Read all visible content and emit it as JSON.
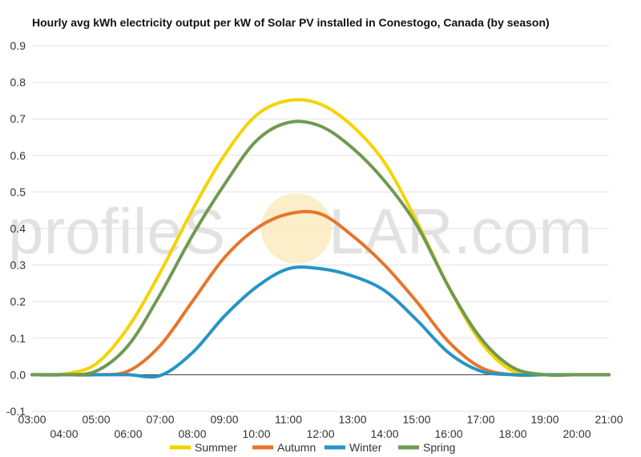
{
  "title": "Hourly avg kWh electricity output per kW of Solar PV installed in Conestogo, Canada (by season)",
  "watermark": {
    "left": "profileS",
    "right": "LAR.com"
  },
  "chart_data": {
    "type": "line",
    "title": "Hourly avg kWh electricity output per kW of Solar PV installed in Conestogo, Canada (by season)",
    "ylim": [
      -0.1,
      0.9
    ],
    "yticks": [
      -0.1,
      0.0,
      0.1,
      0.2,
      0.3,
      0.4,
      0.5,
      0.6,
      0.7,
      0.8,
      0.9
    ],
    "xlim": [
      3,
      21
    ],
    "x_tick_labels": [
      "03:00",
      "04:00",
      "05:00",
      "06:00",
      "07:00",
      "08:00",
      "09:00",
      "10:00",
      "11:00",
      "12:00",
      "13:00",
      "14:00",
      "15:00",
      "16:00",
      "17:00",
      "18:00",
      "19:00",
      "20:00",
      "21:00"
    ],
    "x": [
      3,
      4,
      5,
      6,
      7,
      8,
      9,
      10,
      11,
      12,
      13,
      14,
      15,
      16,
      17,
      18,
      19,
      20,
      21
    ],
    "legend_position": "bottom",
    "grid": true,
    "series": [
      {
        "name": "Summer",
        "color": "#f5d300",
        "values": [
          0.0,
          0.002,
          0.03,
          0.13,
          0.28,
          0.45,
          0.6,
          0.71,
          0.75,
          0.74,
          0.68,
          0.58,
          0.42,
          0.24,
          0.09,
          0.01,
          0.0,
          0.0,
          0.0
        ]
      },
      {
        "name": "Autumn",
        "color": "#e8742a",
        "values": [
          0.0,
          0.0,
          0.0,
          0.01,
          0.08,
          0.2,
          0.32,
          0.4,
          0.44,
          0.44,
          0.38,
          0.3,
          0.2,
          0.09,
          0.02,
          0.0,
          0.0,
          0.0,
          0.0
        ]
      },
      {
        "name": "Winter",
        "color": "#2794c6",
        "values": [
          0.0,
          0.0,
          0.0,
          0.0,
          -0.002,
          0.06,
          0.16,
          0.24,
          0.29,
          0.29,
          0.27,
          0.23,
          0.15,
          0.06,
          0.01,
          0.0,
          0.0,
          0.0,
          0.0
        ]
      },
      {
        "name": "Spring",
        "color": "#6f9a52",
        "values": [
          0.0,
          0.0,
          0.01,
          0.08,
          0.22,
          0.38,
          0.52,
          0.64,
          0.69,
          0.68,
          0.62,
          0.53,
          0.41,
          0.24,
          0.1,
          0.02,
          0.0,
          0.0,
          0.0
        ]
      }
    ]
  }
}
